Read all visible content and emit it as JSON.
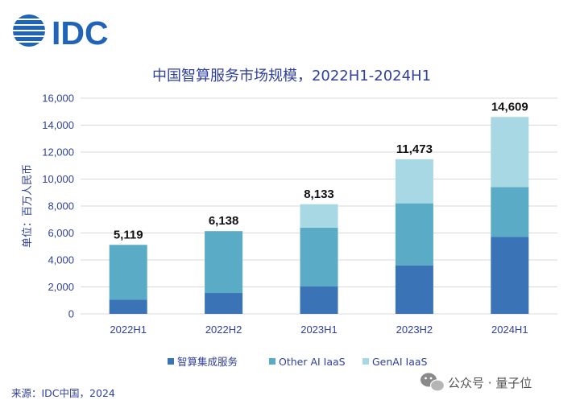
{
  "logo": {
    "text": "IDC"
  },
  "watermark": {
    "text": "公众号 · 量子位",
    "icon": "wechat-icon"
  },
  "source": {
    "text": "来源：IDC中国，2024"
  },
  "colors": {
    "series": [
      "#3a73b6",
      "#5aabc5",
      "#a8d8e3"
    ],
    "title": "#2f3f9e",
    "grid": "#d9d9d9",
    "logo": "#1f64b8"
  },
  "chart_data": {
    "type": "bar",
    "stacked": true,
    "title": "中国智算服务市场规模，2022H1-2024H1",
    "ylabel": "单位：百万人民币",
    "xlabel": "",
    "categories": [
      "2022H1",
      "2022H2",
      "2023H1",
      "2023H2",
      "2024H1"
    ],
    "series": [
      {
        "name": "智算集成服务",
        "values": [
          1050,
          1550,
          2050,
          3600,
          5700
        ]
      },
      {
        "name": "Other AI IaaS",
        "values": [
          4069,
          4588,
          4350,
          4600,
          3700
        ]
      },
      {
        "name": "GenAI IaaS",
        "values": [
          0,
          0,
          1733,
          3273,
          5209
        ]
      }
    ],
    "totals": [
      5119,
      6138,
      8133,
      11473,
      14609
    ],
    "total_labels": [
      "5,119",
      "6,138",
      "8,133",
      "11,473",
      "14,609"
    ],
    "ylim": [
      0,
      16000
    ],
    "yticks": [
      0,
      2000,
      4000,
      6000,
      8000,
      10000,
      12000,
      14000,
      16000
    ],
    "ytick_labels": [
      "0",
      "2,000",
      "4,000",
      "6,000",
      "8,000",
      "10,000",
      "12,000",
      "14,000",
      "16,000"
    ],
    "grid": true,
    "legend_position": "bottom"
  }
}
